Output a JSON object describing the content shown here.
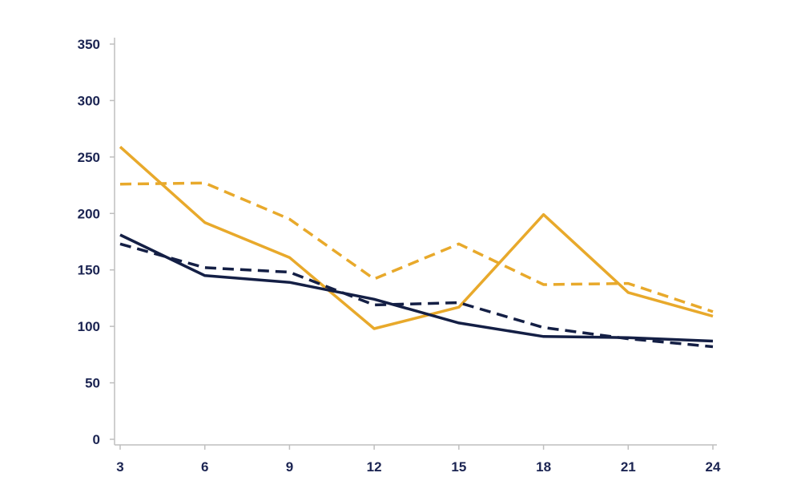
{
  "chart_data": {
    "type": "line",
    "title": "",
    "xlabel": "",
    "ylabel": "",
    "x": [
      3,
      6,
      9,
      12,
      15,
      18,
      21,
      24
    ],
    "x_ticks": [
      "3",
      "6",
      "9",
      "12",
      "15",
      "18",
      "21",
      "24"
    ],
    "y_ticks": [
      "0",
      "50",
      "100",
      "150",
      "200",
      "250",
      "300",
      "350"
    ],
    "xlim": [
      3,
      24
    ],
    "ylim": [
      0,
      350
    ],
    "grid": false,
    "legend": "none",
    "series": [
      {
        "values": [
          259,
          192,
          161,
          98,
          117,
          199,
          130,
          109
        ],
        "color": "#E8A92B",
        "style": "solid"
      },
      {
        "values": [
          226,
          227,
          195,
          142,
          173,
          137,
          138,
          113
        ],
        "color": "#E8A92B",
        "style": "dashed"
      },
      {
        "values": [
          181,
          145,
          139,
          124,
          103,
          91,
          90,
          87
        ],
        "color": "#141F45",
        "style": "solid"
      },
      {
        "values": [
          173,
          152,
          148,
          119,
          121,
          99,
          89,
          82
        ],
        "color": "#141F45",
        "style": "dashed"
      }
    ],
    "colors": {
      "axis": "#bfbfbf",
      "text": "#1b2452"
    }
  }
}
